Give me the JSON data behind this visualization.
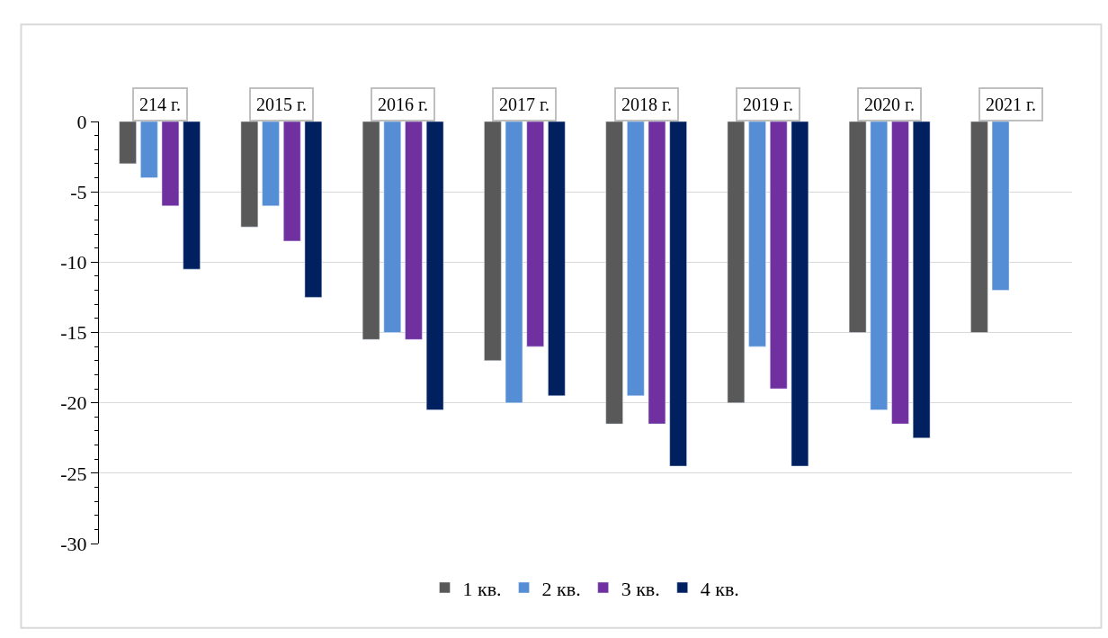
{
  "chart_data": {
    "type": "bar",
    "categories": [
      "214 г.",
      "2015 г.",
      "2016 г.",
      "2017 г.",
      "2018 г.",
      "2019 г.",
      "2020 г.",
      "2021 г."
    ],
    "series": [
      {
        "name": "1 кв.",
        "color": "#595959",
        "values": [
          -3,
          -7.5,
          -15.5,
          -17,
          -21.5,
          -20,
          -15,
          -15
        ]
      },
      {
        "name": "2 кв.",
        "color": "#558ed5",
        "values": [
          -4,
          -6,
          -15,
          -20,
          -19.5,
          -16,
          -20.5,
          -12
        ]
      },
      {
        "name": "3 кв.",
        "color": "#7030a0",
        "values": [
          -6,
          -8.5,
          -15.5,
          -16,
          -21.5,
          -19,
          -21.5,
          null
        ]
      },
      {
        "name": "4 кв.",
        "color": "#002060",
        "values": [
          -10.5,
          -12.5,
          -20.5,
          -19.5,
          -24.5,
          -24.5,
          -22.5,
          null
        ]
      }
    ],
    "ylim": [
      -30,
      0
    ],
    "yticks": [
      -30,
      -25,
      -20,
      -15,
      -10,
      -5,
      0
    ],
    "grid": "y",
    "legend": "bottom"
  }
}
